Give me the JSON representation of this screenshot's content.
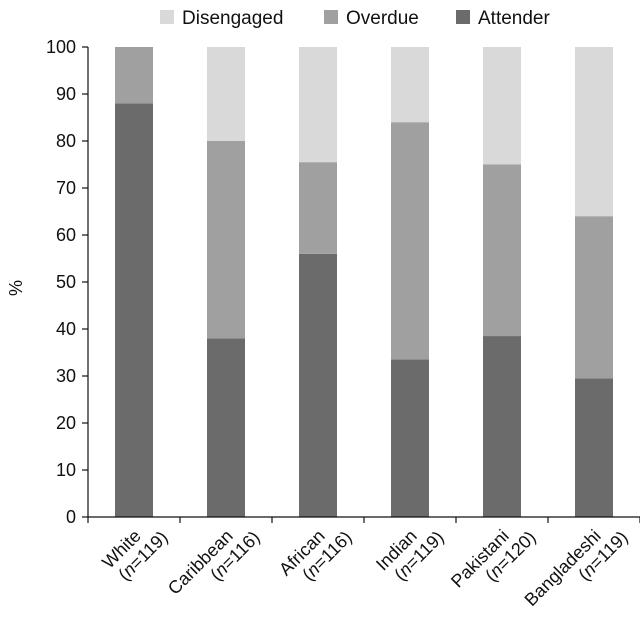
{
  "chart_data": {
    "type": "bar",
    "stacked": true,
    "title": "",
    "xlabel": "",
    "ylabel": "%",
    "ylim": [
      0,
      100
    ],
    "yticks": [
      0,
      10,
      20,
      30,
      40,
      50,
      60,
      70,
      80,
      90,
      100
    ],
    "categories": [
      "White",
      "Caribbean",
      "African",
      "Indian",
      "Pakistani",
      "Bangladeshi"
    ],
    "category_n": [
      "119",
      "116",
      "116",
      "119",
      "120",
      "119"
    ],
    "legend_position": "top",
    "grid": false,
    "series": [
      {
        "name": "Attender",
        "color": "#6b6b6b",
        "values": [
          88,
          38,
          56,
          33.5,
          38.5,
          29.5
        ]
      },
      {
        "name": "Overdue",
        "color": "#a0a0a0",
        "values": [
          12,
          42,
          19.5,
          50.5,
          36.5,
          34.5
        ]
      },
      {
        "name": "Disengaged",
        "color": "#d9d9d9",
        "values": [
          0,
          20,
          24.5,
          16,
          25,
          36
        ]
      }
    ],
    "legend_order": [
      "Disengaged",
      "Overdue",
      "Attender"
    ]
  }
}
